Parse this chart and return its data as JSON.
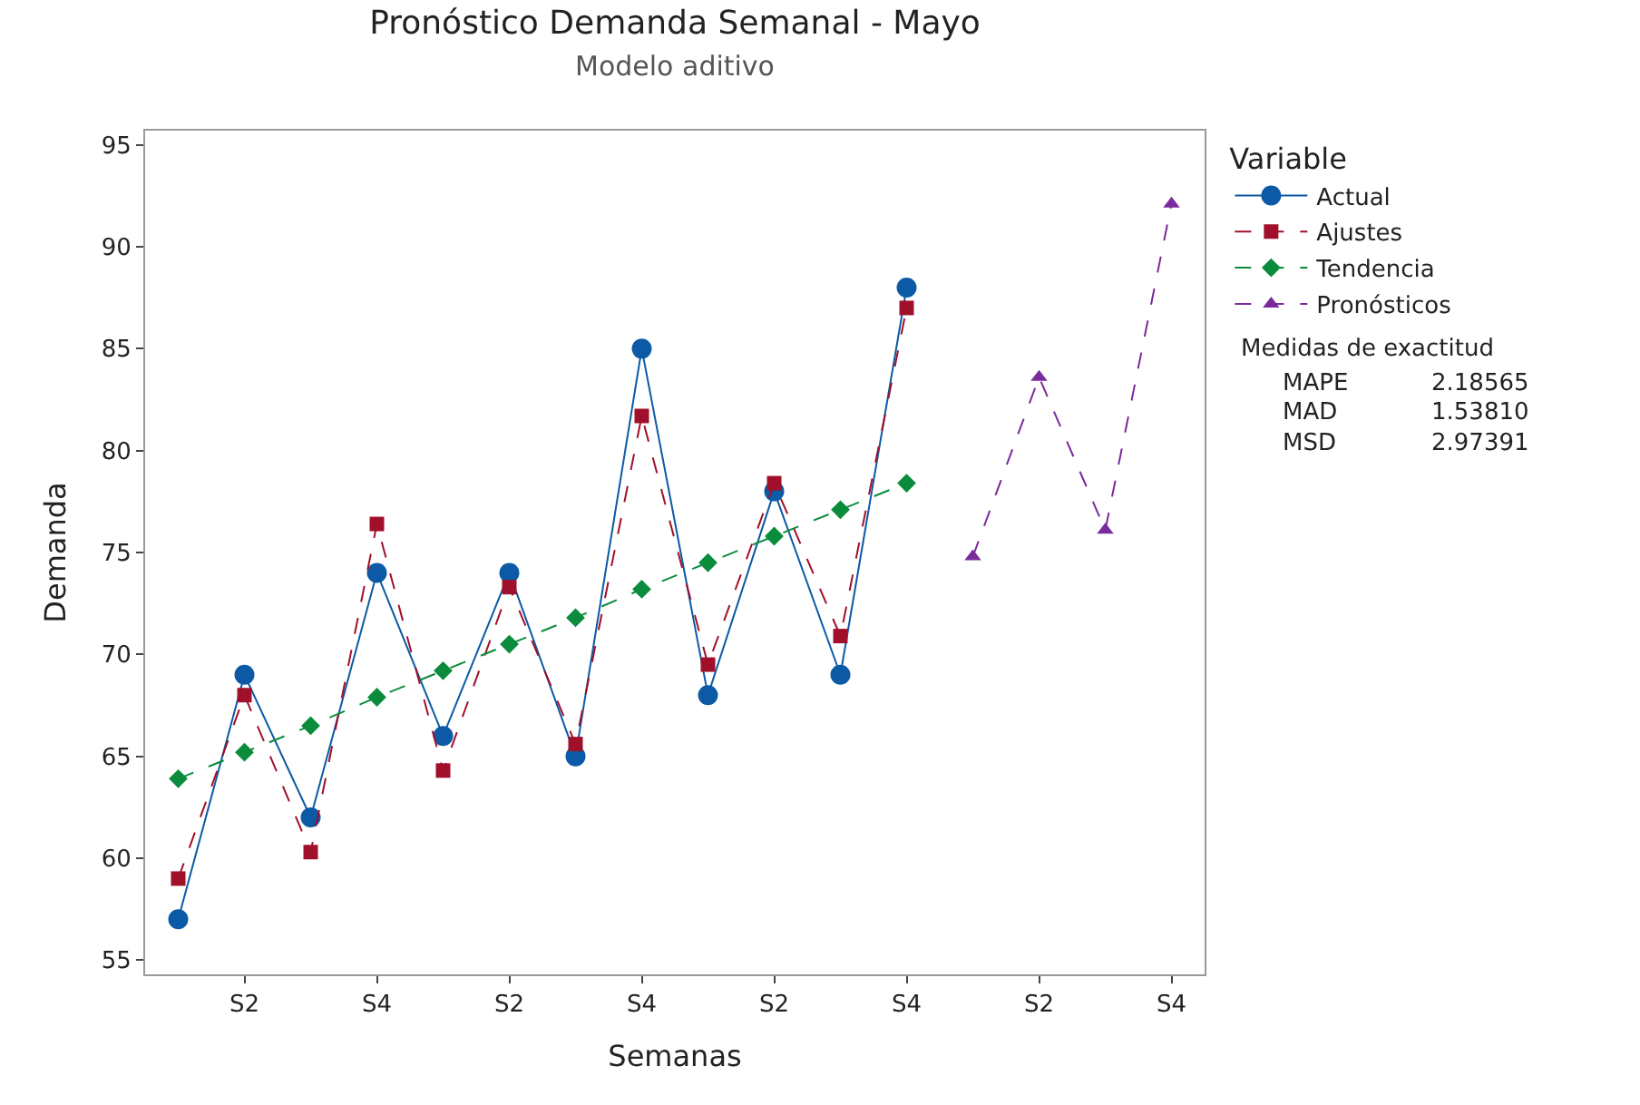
{
  "chart_data": {
    "type": "line",
    "title": "Pronóstico Demanda Semanal - Mayo",
    "subtitle": "Modelo aditivo",
    "xlabel": "Semanas",
    "ylabel": "Demanda",
    "legend_title": "Variable",
    "categories": [
      null,
      "S2",
      null,
      "S4",
      null,
      "S2",
      null,
      "S4",
      null,
      "S2",
      null,
      "S4",
      null,
      "S2",
      null,
      "S4"
    ],
    "series": [
      {
        "name": "Actual",
        "color": "#0c5aa6",
        "marker": "circle",
        "line_style": "solid",
        "values": [
          57,
          69,
          62,
          74,
          66,
          74,
          65,
          85,
          68,
          78,
          69,
          88,
          null,
          null,
          null,
          null
        ]
      },
      {
        "name": "Ajustes",
        "color": "#a0102a",
        "marker": "square",
        "line_style": "dashed",
        "values": [
          59,
          68,
          60.3,
          76.4,
          64.3,
          73.3,
          65.6,
          81.7,
          69.5,
          78.4,
          70.9,
          87,
          null,
          null,
          null,
          null
        ]
      },
      {
        "name": "Tendencia",
        "color": "#0a8c3c",
        "marker": "diamond",
        "line_style": "dashed",
        "values": [
          63.9,
          65.2,
          66.5,
          67.9,
          69.2,
          70.5,
          71.8,
          73.2,
          74.5,
          75.8,
          77.1,
          78.4,
          null,
          null,
          null,
          null
        ]
      },
      {
        "name": "Pronósticos",
        "color": "#7a2a9a",
        "marker": "triangle",
        "line_style": "dashed",
        "values": [
          null,
          null,
          null,
          null,
          null,
          null,
          null,
          null,
          null,
          null,
          null,
          null,
          74.8,
          83.6,
          76.1,
          92.1
        ]
      }
    ],
    "ylim": [
      54.3,
      95.7
    ],
    "yticks": [
      55,
      60,
      65,
      70,
      75,
      80,
      85,
      90,
      95
    ],
    "legend": "top right",
    "annotations": [
      "Medidas de exactitud",
      "MAPE",
      "2.18565",
      "MAD",
      "1.53810",
      "MSD",
      "2.97391"
    ]
  }
}
